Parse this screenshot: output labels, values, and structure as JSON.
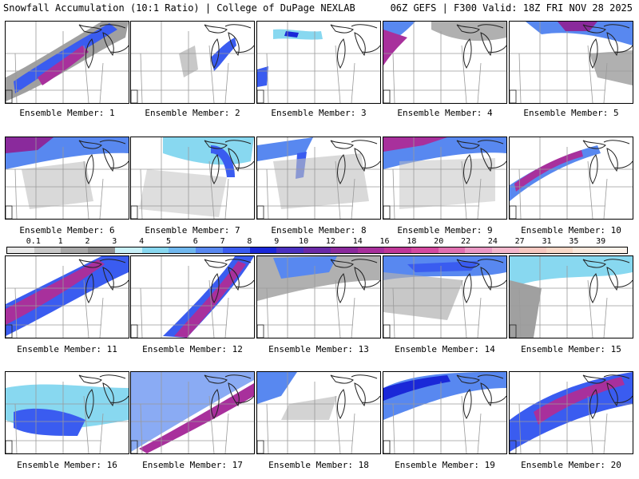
{
  "header": {
    "left": "Snowfall Accumulation (10:1 Ratio) | College of DuPage NEXLAB",
    "right": "06Z GEFS | F300 Valid: 18Z FRI NOV 28 2025"
  },
  "colorbar": {
    "ticks": [
      "0.1",
      "1",
      "2",
      "3",
      "4",
      "5",
      "6",
      "7",
      "8",
      "9",
      "10",
      "12",
      "14",
      "16",
      "18",
      "20",
      "22",
      "24",
      "27",
      "31",
      "35",
      "39"
    ],
    "colors": [
      "#e8e8e8",
      "#c8c8c8",
      "#a8a8a8",
      "#909090",
      "#c8f0f8",
      "#88d8f0",
      "#70b8ee",
      "#5888f0",
      "#3a5cf0",
      "#1a28d8",
      "#4a30c0",
      "#6a2aa8",
      "#8a2a9c",
      "#a8309c",
      "#c03898",
      "#d44aa0",
      "#e070b0",
      "#ea98c4",
      "#f4b8cc",
      "#f6c8c0",
      "#f8d8c8",
      "#fae8dc",
      "#fcf2ea"
    ]
  },
  "panels": [
    {
      "label": "Ensemble Member: 1"
    },
    {
      "label": "Ensemble Member: 2"
    },
    {
      "label": "Ensemble Member: 3"
    },
    {
      "label": "Ensemble Member: 4"
    },
    {
      "label": "Ensemble Member: 5"
    },
    {
      "label": "Ensemble Member: 6"
    },
    {
      "label": "Ensemble Member: 7"
    },
    {
      "label": "Ensemble Member: 8"
    },
    {
      "label": "Ensemble Member: 9"
    },
    {
      "label": "Ensemble Member: 10"
    },
    {
      "label": "Ensemble Member: 11"
    },
    {
      "label": "Ensemble Member: 12"
    },
    {
      "label": "Ensemble Member: 13"
    },
    {
      "label": "Ensemble Member: 14"
    },
    {
      "label": "Ensemble Member: 15"
    },
    {
      "label": "Ensemble Member: 16"
    },
    {
      "label": "Ensemble Member: 17"
    },
    {
      "label": "Ensemble Member: 18"
    },
    {
      "label": "Ensemble Member: 19"
    },
    {
      "label": "Ensemble Member: 20"
    }
  ]
}
